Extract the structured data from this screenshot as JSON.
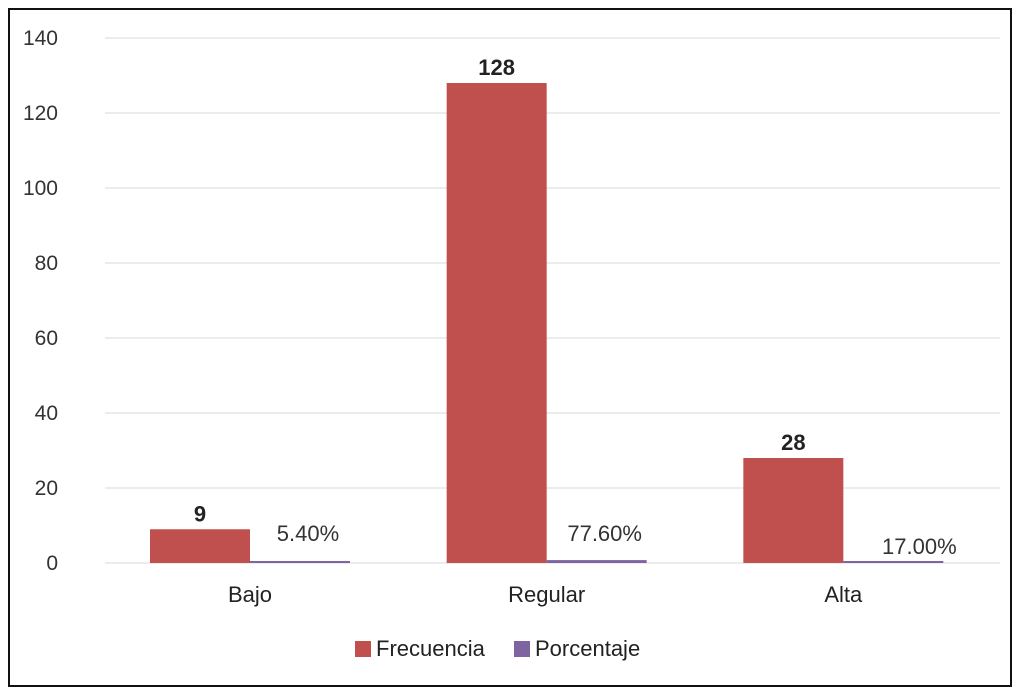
{
  "chart_data": {
    "type": "bar",
    "categories": [
      "Bajo",
      "Regular",
      "Alta"
    ],
    "series": [
      {
        "name": "Frecuencia",
        "values": [
          9,
          128,
          28
        ],
        "labels": [
          "9",
          "128",
          "28"
        ],
        "color": "#c0504d"
      },
      {
        "name": "Porcentaje",
        "values": [
          0.054,
          0.776,
          0.17
        ],
        "labels": [
          "5.40%",
          "77.60%",
          "17.00%"
        ],
        "color": "#8064a2"
      }
    ],
    "title": "",
    "xlabel": "",
    "ylabel": "",
    "ylim": [
      0,
      140
    ],
    "yticks": [
      "0",
      "20",
      "40",
      "60",
      "80",
      "100",
      "120",
      "140"
    ],
    "grid": true,
    "legend_position": "bottom"
  }
}
